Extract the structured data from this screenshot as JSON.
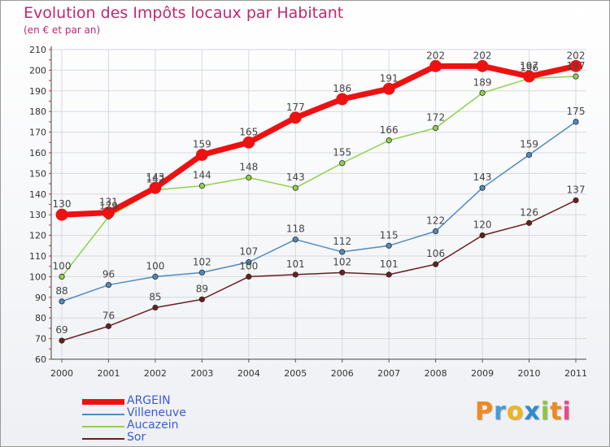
{
  "header": {
    "title": "Evolution des Impôts locaux par Habitant",
    "subtitle": "(en € et par an)"
  },
  "brand": {
    "letters": [
      "P",
      "r",
      "o",
      "x",
      "i",
      "t",
      "i"
    ]
  },
  "chart_data": {
    "type": "line",
    "title": "Evolution des Impôts locaux par Habitant",
    "subtitle": "(en € et par an)",
    "xlabel": "",
    "ylabel": "",
    "categories": [
      "2000",
      "2001",
      "2002",
      "2003",
      "2004",
      "2005",
      "2006",
      "2007",
      "2008",
      "2009",
      "2010",
      "2011"
    ],
    "ylim": [
      60,
      210
    ],
    "yticks": [
      60,
      70,
      80,
      90,
      100,
      110,
      120,
      130,
      140,
      150,
      160,
      170,
      180,
      190,
      200,
      210
    ],
    "grid": true,
    "legend_position": "bottom-left",
    "series": [
      {
        "name": "ARGEIN",
        "color": "#ee1111",
        "values": [
          130,
          131,
          143,
          159,
          165,
          177,
          186,
          191,
          202,
          202,
          197,
          202
        ]
      },
      {
        "name": "Villeneuve",
        "color": "#4f8bc0",
        "values": [
          88,
          96,
          100,
          102,
          107,
          118,
          112,
          115,
          122,
          143,
          159,
          175
        ]
      },
      {
        "name": "Aucazein",
        "color": "#8fd14f",
        "values": [
          100,
          129,
          142,
          144,
          148,
          143,
          155,
          166,
          172,
          189,
          196,
          197
        ]
      },
      {
        "name": "Sor",
        "color": "#6b1e1e",
        "values": [
          69,
          76,
          85,
          89,
          100,
          101,
          102,
          101,
          106,
          120,
          126,
          137
        ]
      }
    ]
  }
}
